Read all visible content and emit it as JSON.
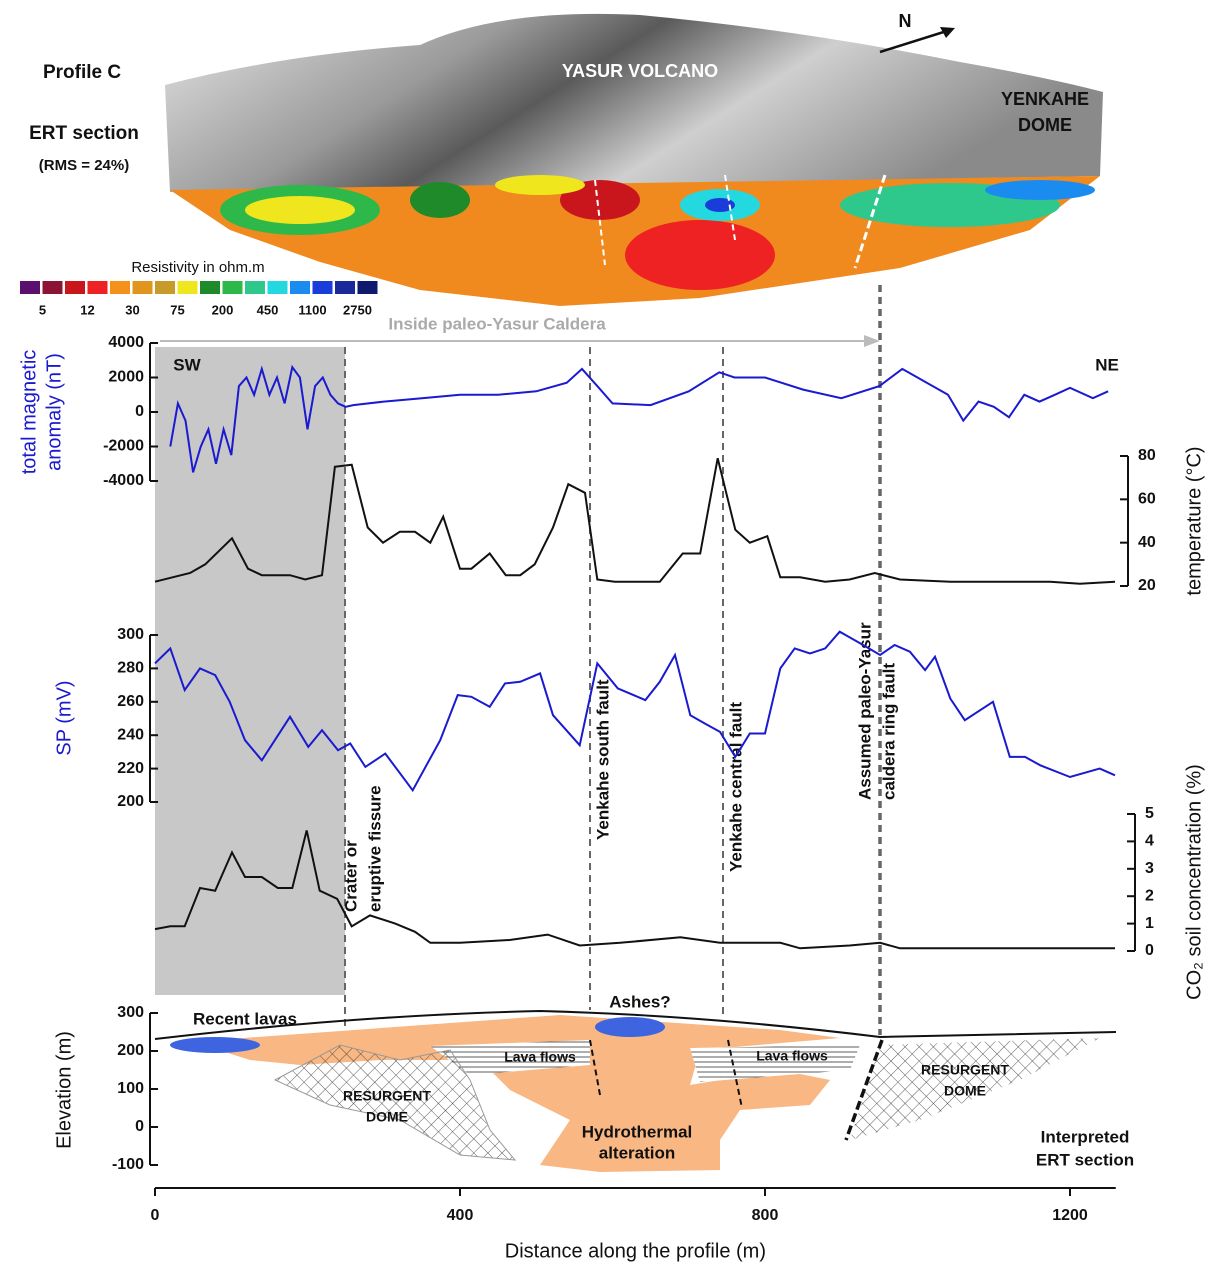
{
  "header": {
    "profile": "Profile C",
    "ert": "ERT section",
    "rms": "(RMS = 24%)",
    "volcano": "YASUR VOLCANO",
    "dome": [
      "YENKAHE",
      "DOME"
    ],
    "north": "N"
  },
  "colorbar": {
    "title": "Resistivity in ohm.m",
    "ticks": [
      5,
      12,
      30,
      75,
      200,
      450,
      1100,
      2750
    ],
    "colors": [
      "#5b0f6f",
      "#8c1432",
      "#c8161c",
      "#ee2222",
      "#f4901c",
      "#e0961e",
      "#c79a2a",
      "#f0e61e",
      "#1f8a2a",
      "#2fb84a",
      "#2ec88c",
      "#24d8e0",
      "#1a8cf0",
      "#1a3cd8",
      "#1a2a9a",
      "#0d1a6e"
    ]
  },
  "annotations": {
    "caldera": "Inside paleo-Yasur Caldera",
    "sw": "SW",
    "ne": "NE",
    "faults": [
      [
        "Crater or",
        "eruptive fissure"
      ],
      [
        "Yenkahe south fault"
      ],
      [
        "Yenkahe central fault"
      ],
      [
        "Assumed paleo-Yasur",
        "caldera ring fault"
      ]
    ]
  },
  "x_axis": {
    "label": "Distance along the profile (m)",
    "xlim": [
      0,
      1260
    ],
    "xticks": [
      0,
      400,
      800,
      1200
    ]
  },
  "chart_data": [
    {
      "type": "line",
      "ylabel": [
        "total magnetic",
        "anomaly (nT)"
      ],
      "color": "#1a1ad0",
      "ylim": [
        -4000,
        4000
      ],
      "yticks": [
        -4000,
        -2000,
        0,
        2000,
        4000
      ],
      "x": [
        20,
        30,
        40,
        50,
        60,
        70,
        80,
        90,
        100,
        110,
        120,
        130,
        140,
        150,
        160,
        170,
        180,
        190,
        200,
        210,
        220,
        230,
        240,
        250,
        260,
        300,
        350,
        400,
        450,
        500,
        540,
        560,
        580,
        600,
        650,
        700,
        740,
        760,
        800,
        850,
        900,
        950,
        980,
        1000,
        1040,
        1060,
        1080,
        1100,
        1120,
        1140,
        1160,
        1180,
        1200,
        1230,
        1250
      ],
      "values": [
        -2000,
        500,
        -500,
        -3500,
        -2000,
        -1000,
        -3000,
        -1000,
        -2500,
        1500,
        2000,
        1000,
        2500,
        1000,
        2000,
        500,
        2600,
        2000,
        -1000,
        1500,
        2000,
        1000,
        500,
        300,
        400,
        600,
        800,
        1000,
        1000,
        1200,
        1700,
        2500,
        1500,
        500,
        400,
        1200,
        2300,
        2000,
        2000,
        1300,
        800,
        1500,
        2500,
        2000,
        1000,
        -500,
        600,
        300,
        -300,
        1000,
        600,
        1000,
        1400,
        800,
        1200
      ]
    },
    {
      "type": "line",
      "ylabel": [
        "temperature (°C)"
      ],
      "color": "#111111",
      "ylim": [
        20,
        80
      ],
      "yticks": [
        20,
        40,
        60,
        80
      ],
      "side": "right",
      "x": [
        0,
        46,
        66,
        101,
        122,
        140,
        177,
        197,
        219,
        236,
        258,
        279,
        299,
        321,
        341,
        361,
        378,
        400,
        415,
        439,
        460,
        479,
        498,
        522,
        542,
        564,
        580,
        603,
        662,
        692,
        715,
        738,
        761,
        780,
        803,
        820,
        846,
        879,
        911,
        944,
        977,
        1043,
        1174,
        1213,
        1259
      ],
      "values": [
        22,
        26,
        30,
        42,
        28,
        25,
        25,
        23,
        25,
        75,
        76,
        47,
        40,
        45,
        45,
        40,
        52,
        28,
        28,
        35,
        25,
        25,
        30,
        47,
        67,
        63,
        23,
        22,
        22,
        35,
        35,
        79,
        46,
        40,
        43,
        24,
        24,
        22,
        23,
        26,
        23,
        22,
        22,
        21,
        22
      ]
    },
    {
      "type": "line",
      "ylabel": [
        "SP (mV)"
      ],
      "color": "#1a1ad0",
      "ylim": [
        200,
        300
      ],
      "yticks": [
        200,
        220,
        240,
        260,
        280,
        300
      ],
      "x": [
        0,
        20,
        39,
        59,
        79,
        98,
        118,
        140,
        177,
        201,
        219,
        240,
        256,
        276,
        302,
        338,
        374,
        397,
        415,
        439,
        459,
        479,
        505,
        522,
        557,
        580,
        607,
        643,
        662,
        682,
        702,
        721,
        741,
        761,
        780,
        800,
        820,
        839,
        859,
        879,
        898,
        925,
        951,
        970,
        990,
        1010,
        1023,
        1043,
        1062,
        1099,
        1121,
        1141,
        1161,
        1200,
        1239,
        1259
      ],
      "values": [
        283,
        292,
        267,
        280,
        276,
        260,
        237,
        225,
        251,
        233,
        243,
        231,
        235,
        221,
        229,
        207,
        237,
        264,
        263,
        257,
        271,
        272,
        277,
        252,
        234,
        283,
        268,
        261,
        272,
        288,
        252,
        247,
        242,
        227,
        241,
        241,
        280,
        292,
        289,
        292,
        302,
        295,
        288,
        294,
        290,
        279,
        287,
        262,
        249,
        260,
        227,
        227,
        222,
        215,
        220,
        216
      ]
    },
    {
      "type": "line",
      "ylabel": [
        "CO₂ soil concentration (%)"
      ],
      "color": "#111111",
      "ylim": [
        0,
        5
      ],
      "yticks": [
        0,
        1,
        2,
        3,
        4,
        5
      ],
      "side": "right",
      "x": [
        0,
        20,
        39,
        59,
        79,
        101,
        118,
        140,
        161,
        180,
        199,
        216,
        239,
        258,
        282,
        315,
        341,
        361,
        400,
        465,
        515,
        557,
        610,
        689,
        741,
        820,
        846,
        911,
        951,
        977,
        1108,
        1259
      ],
      "values": [
        0.8,
        0.9,
        0.9,
        2.3,
        2.2,
        3.6,
        2.7,
        2.7,
        2.3,
        2.3,
        4.4,
        2.2,
        1.9,
        0.9,
        1.3,
        1.0,
        0.7,
        0.3,
        0.3,
        0.4,
        0.6,
        0.2,
        0.3,
        0.5,
        0.3,
        0.3,
        0.1,
        0.2,
        0.3,
        0.1,
        0.1,
        0.1
      ]
    },
    {
      "type": "section",
      "ylabel": [
        "Elevation (m)"
      ],
      "ylim": [
        -100,
        300
      ],
      "yticks": [
        -100,
        0,
        100,
        200,
        300
      ],
      "labels": {
        "lavas": "Recent lavas",
        "ashes": "Ashes?",
        "flows1": "Lava flows",
        "flows2": "Lava flows",
        "dome1": [
          "RESURGENT",
          "DOME"
        ],
        "dome2": [
          "RESURGENT",
          "DOME"
        ],
        "hydro": [
          "Hydrothermal",
          "alteration"
        ],
        "interp": [
          "Interpreted",
          "ERT section"
        ]
      }
    }
  ]
}
